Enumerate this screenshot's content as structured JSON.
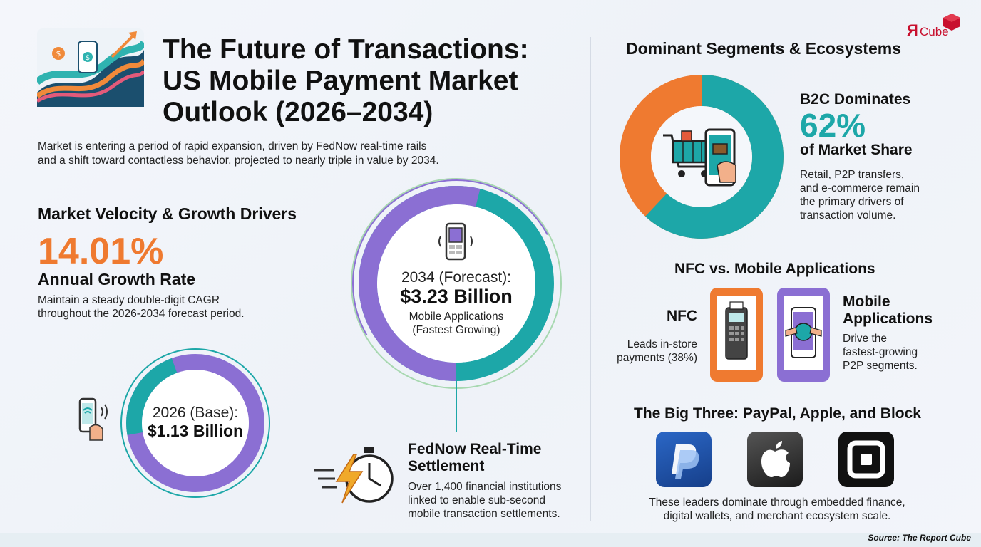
{
  "header": {
    "title_line1": "The Future of Transactions:",
    "title_line2": "US Mobile Payment Market",
    "title_line3": "Outlook (2026–2034)",
    "intro_line1": "Market is entering a period of rapid expansion, driven by FedNow real-time rails",
    "intro_line2": "and a shift toward contactless behavior, projected to nearly triple in value by 2034."
  },
  "brand": {
    "logo_text": "Cube",
    "logo_letter": "Я"
  },
  "growth": {
    "heading": "Market Velocity & Growth Drivers",
    "rate": "14.01%",
    "rate_label": "Annual Growth Rate",
    "desc_line1": "Maintain a steady double-digit CAGR",
    "desc_line2": "throughout the 2026-2034 forecast period."
  },
  "forecast": {
    "label": "2034 (Forecast):",
    "value": "$3.23 Billion",
    "sub_line1": "Mobile Applications",
    "sub_line2": "(Fastest Growing)"
  },
  "base": {
    "label": "2026 (Base):",
    "value": "$1.13 Billion"
  },
  "fednow": {
    "title_line1": "FedNow Real-Time",
    "title_line2": "Settlement",
    "desc_line1": "Over 1,400 financial institutions",
    "desc_line2": "linked to enable sub-second",
    "desc_line3": "mobile transaction settlements."
  },
  "segments": {
    "heading": "Dominant Segments & Ecosystems",
    "b2c_title": "B2C Dominates",
    "b2c_value": "62%",
    "b2c_label": "of Market Share",
    "b2c_share": 0.62,
    "desc_line1": "Retail, P2P transfers,",
    "desc_line2": "and e-commerce remain",
    "desc_line3": "the primary drivers of",
    "desc_line4": "transaction volume."
  },
  "nfc": {
    "heading": "NFC vs. Mobile Applications",
    "nfc_title": "NFC",
    "nfc_line1": "Leads in-store",
    "nfc_line2": "payments (38%)",
    "app_title_line1": "Mobile",
    "app_title_line2": "Applications",
    "app_line1": "Drive the",
    "app_line2": "fastest-growing",
    "app_line3": "P2P segments."
  },
  "bigthree": {
    "heading": "The Big Three: PayPal, Apple, and Block",
    "desc_line1": "These leaders dominate through embedded finance,",
    "desc_line2": "digital wallets, and merchant ecosystem scale.",
    "icons": [
      "paypal-icon",
      "apple-icon",
      "block-square-icon"
    ]
  },
  "footer": {
    "source": "Source: The Report Cube"
  },
  "colors": {
    "orange": "#ef7a30",
    "teal": "#1da7a8",
    "purple": "#8b6fd3",
    "paypal_blue": "#1f4fa8"
  }
}
